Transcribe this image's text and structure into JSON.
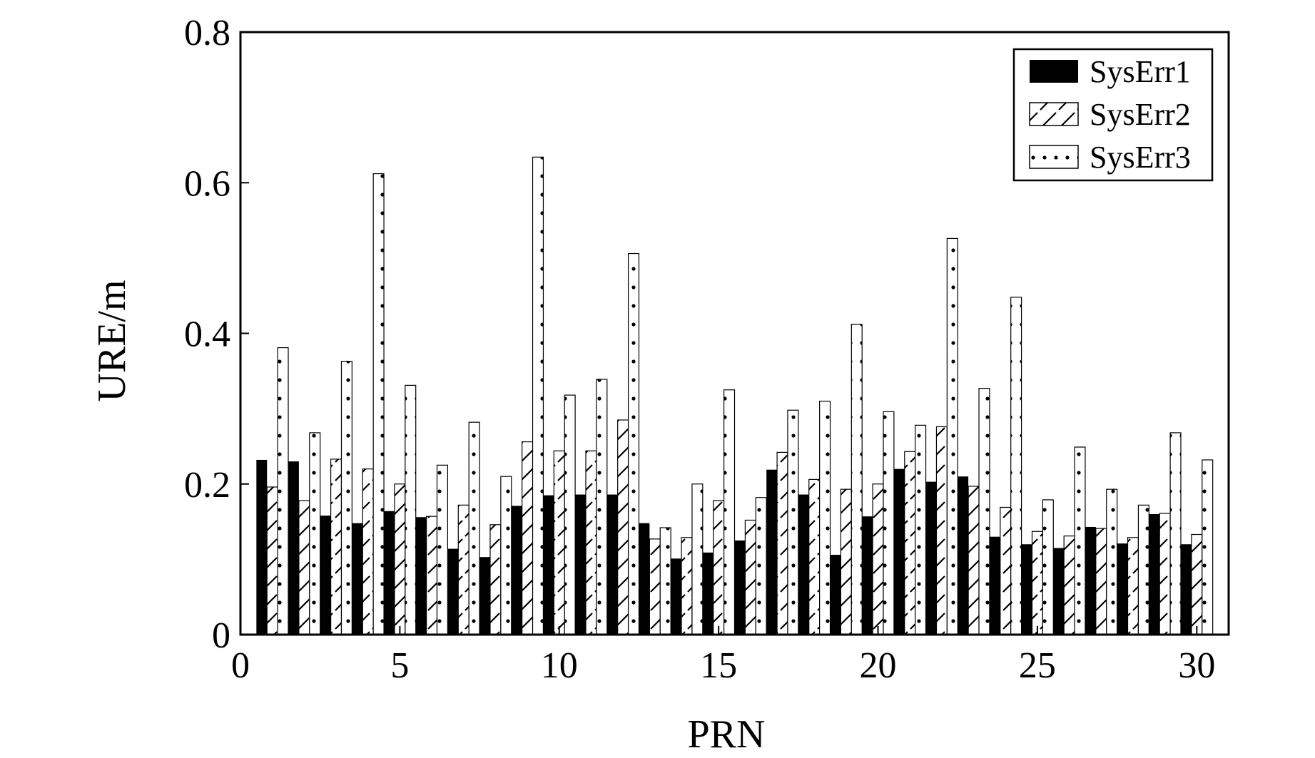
{
  "chart_data": {
    "type": "bar",
    "xlabel": "PRN",
    "ylabel": "URE/m",
    "xlim": [
      0,
      31
    ],
    "ylim": [
      0,
      0.8
    ],
    "xticks": [
      "0",
      "5",
      "10",
      "15",
      "20",
      "25",
      "30"
    ],
    "yticks": [
      "0",
      "0.2",
      "0.4",
      "0.6",
      "0.8"
    ],
    "grid": false,
    "legend_position": "top-right",
    "categories": [
      1,
      2,
      3,
      4,
      5,
      6,
      7,
      8,
      9,
      10,
      11,
      12,
      13,
      14,
      15,
      16,
      17,
      18,
      19,
      20,
      21,
      22,
      23,
      24,
      25,
      26,
      27,
      28,
      29,
      30
    ],
    "series": [
      {
        "name": "SysErr1",
        "pattern": "solid",
        "color": "#000000",
        "values": [
          0.232,
          0.23,
          0.158,
          0.148,
          0.164,
          0.156,
          0.114,
          0.103,
          0.171,
          0.185,
          0.186,
          0.186,
          0.148,
          0.101,
          0.109,
          0.125,
          0.219,
          0.186,
          0.106,
          0.157,
          0.22,
          0.203,
          0.21,
          0.13,
          0.12,
          0.115,
          0.143,
          0.121,
          0.16,
          0.12
        ]
      },
      {
        "name": "SysErr2",
        "pattern": "hatch",
        "color": "#000000",
        "values": [
          0.196,
          0.178,
          0.233,
          0.22,
          0.2,
          0.157,
          0.172,
          0.146,
          0.256,
          0.244,
          0.244,
          0.285,
          0.127,
          0.129,
          0.178,
          0.152,
          0.242,
          0.206,
          0.193,
          0.2,
          0.243,
          0.276,
          0.197,
          0.169,
          0.137,
          0.131,
          0.141,
          0.129,
          0.161,
          0.133
        ]
      },
      {
        "name": "SysErr3",
        "pattern": "dots",
        "color": "#000000",
        "values": [
          0.381,
          0.268,
          0.363,
          0.612,
          0.331,
          0.225,
          0.282,
          0.21,
          0.634,
          0.318,
          0.339,
          0.506,
          0.142,
          0.2,
          0.325,
          0.182,
          0.298,
          0.31,
          0.412,
          0.296,
          0.278,
          0.526,
          0.327,
          0.448,
          0.179,
          0.249,
          0.193,
          0.172,
          0.268,
          0.232
        ]
      }
    ]
  }
}
